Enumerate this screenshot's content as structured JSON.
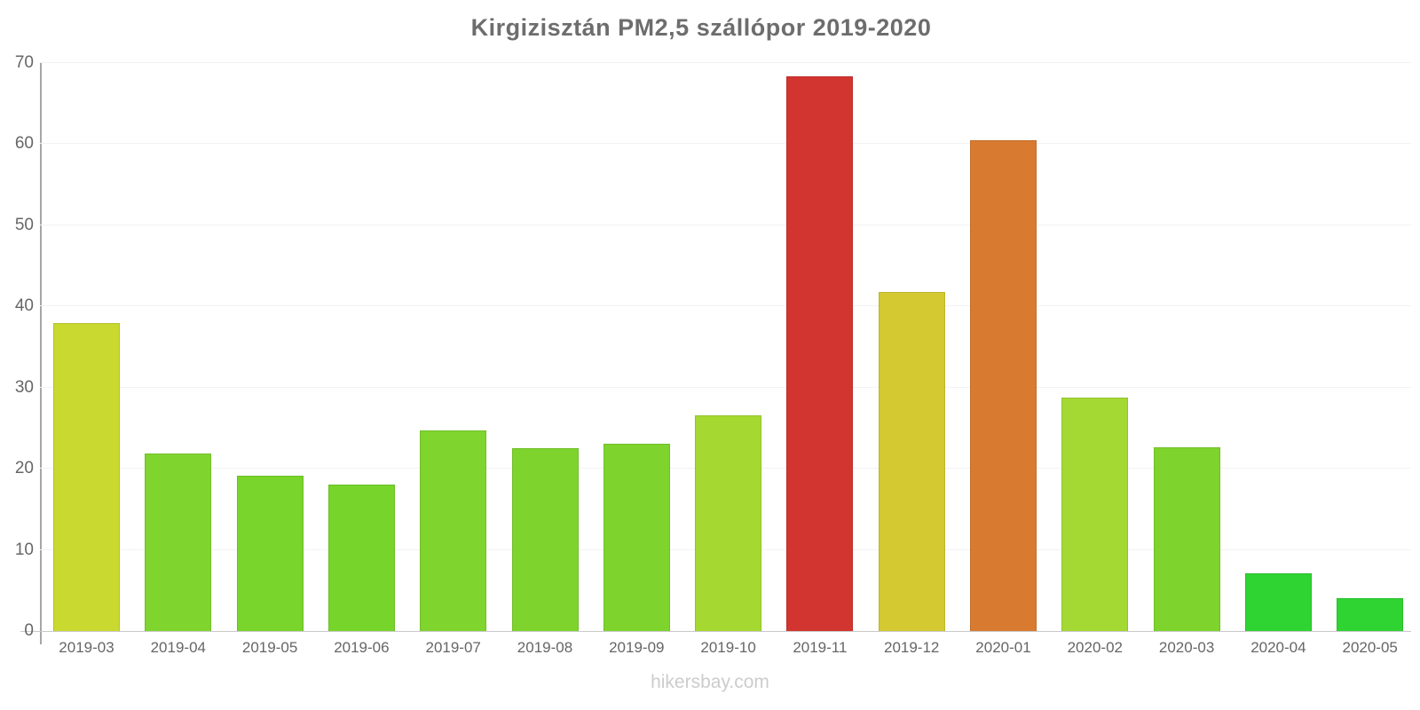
{
  "title": "Kirgizisztán PM2,5 szállópor 2019-2020",
  "footer": {
    "text": "hikersbay.com"
  },
  "chart_data": {
    "type": "bar",
    "title": "Kirgizisztán PM2,5 szállópor 2019-2020",
    "xlabel": "",
    "ylabel": "",
    "ylim": [
      0,
      70
    ],
    "yticks": [
      0,
      10,
      20,
      30,
      40,
      50,
      60,
      70
    ],
    "grid": "horizontal",
    "legend": "none",
    "source_label": "hikersbay.com",
    "categories": [
      "2019-03",
      "2019-04",
      "2019-05",
      "2019-06",
      "2019-07",
      "2019-08",
      "2019-09",
      "2019-10",
      "2019-11",
      "2019-12",
      "2020-01",
      "2020-02",
      "2020-03",
      "2020-04",
      "2020-05"
    ],
    "values": [
      38,
      21.9,
      19.1,
      18,
      24.7,
      22.5,
      23.1,
      26.6,
      68.4,
      41.8,
      60.5,
      28.8,
      22.6,
      7.1,
      4
    ],
    "bar_colors": [
      "#c9d930",
      "#7fd42e",
      "#79d42b",
      "#77d42a",
      "#7fd42e",
      "#7ed42d",
      "#7ed42d",
      "#a5d931",
      "#d2342f",
      "#d4c931",
      "#d87b30",
      "#a3d932",
      "#7ed42d",
      "#2fd332",
      "#2fd332"
    ]
  },
  "colors": {
    "title_text": "#6d6d6d",
    "axis_text": "#666666",
    "axis_line": "#a6a6a6",
    "gridline": "#f2f2f2",
    "baseline": "#c9c9c9",
    "footer_text": "#cccccc"
  }
}
